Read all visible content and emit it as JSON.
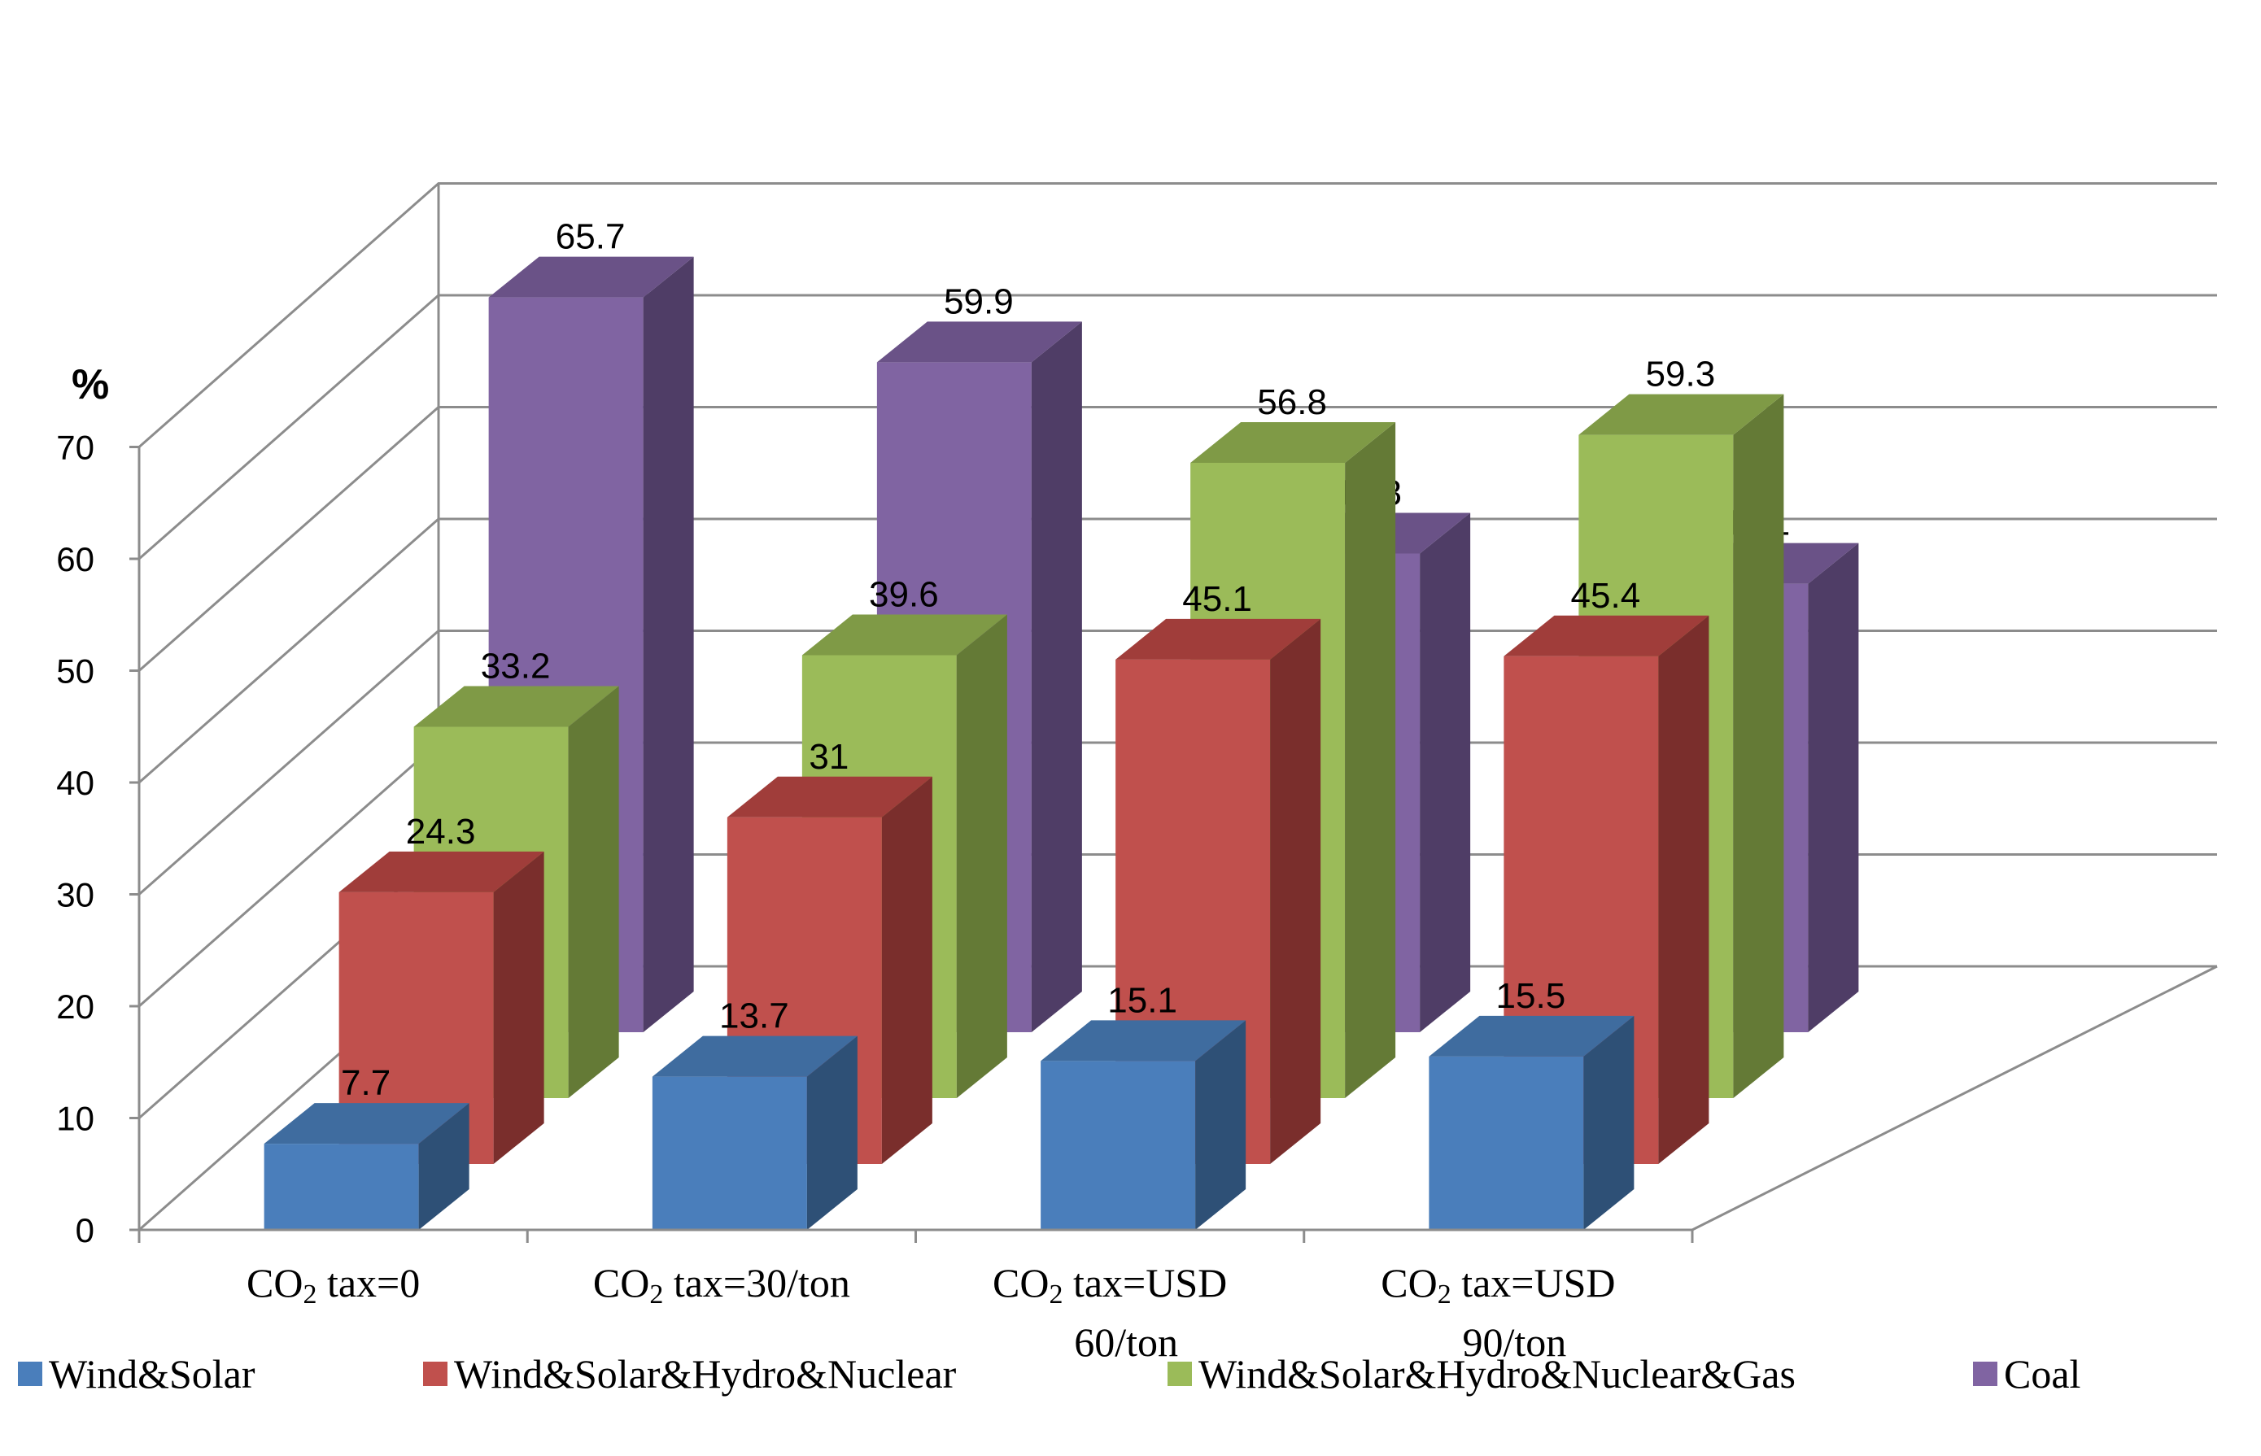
{
  "chart_data": {
    "type": "bar",
    "variant": "3d-clustered-depth",
    "ylabel": "%",
    "ylim": [
      0,
      70
    ],
    "yticks": [
      0,
      10,
      20,
      30,
      40,
      50,
      60,
      70
    ],
    "categories": [
      {
        "lines": [
          "CO",
          "2",
          " tax=0"
        ]
      },
      {
        "lines": [
          "CO",
          "2",
          " tax=30/ton"
        ]
      },
      {
        "lines": [
          "CO",
          "2",
          " tax=USD"
        ],
        "line2": "60/ton"
      },
      {
        "lines": [
          "CO",
          "2",
          " tax=USD"
        ],
        "line2": "90/ton"
      }
    ],
    "series": [
      {
        "name": "Wind&Solar",
        "values": [
          7.7,
          13.7,
          15.1,
          15.5
        ],
        "color": "#4a7ebb",
        "top": "#3f6c9f",
        "side": "#2e5076"
      },
      {
        "name": "Wind&Solar&Hydro&Nuclear",
        "values": [
          24.3,
          31,
          45.1,
          45.4
        ],
        "color": "#c0504d",
        "top": "#a03d3a",
        "side": "#7a2e2c"
      },
      {
        "name": "Wind&Solar&Hydro&Nuclear&Gas",
        "values": [
          33.2,
          39.6,
          56.8,
          59.3
        ],
        "color": "#9bbb59",
        "top": "#7f9a46",
        "side": "#647a36"
      },
      {
        "name": "Coal",
        "values": [
          65.7,
          59.9,
          42.8,
          40.1
        ],
        "color": "#8064a2",
        "top": "#6a5287",
        "side": "#4f3d66"
      }
    ],
    "legend": "bottom"
  }
}
